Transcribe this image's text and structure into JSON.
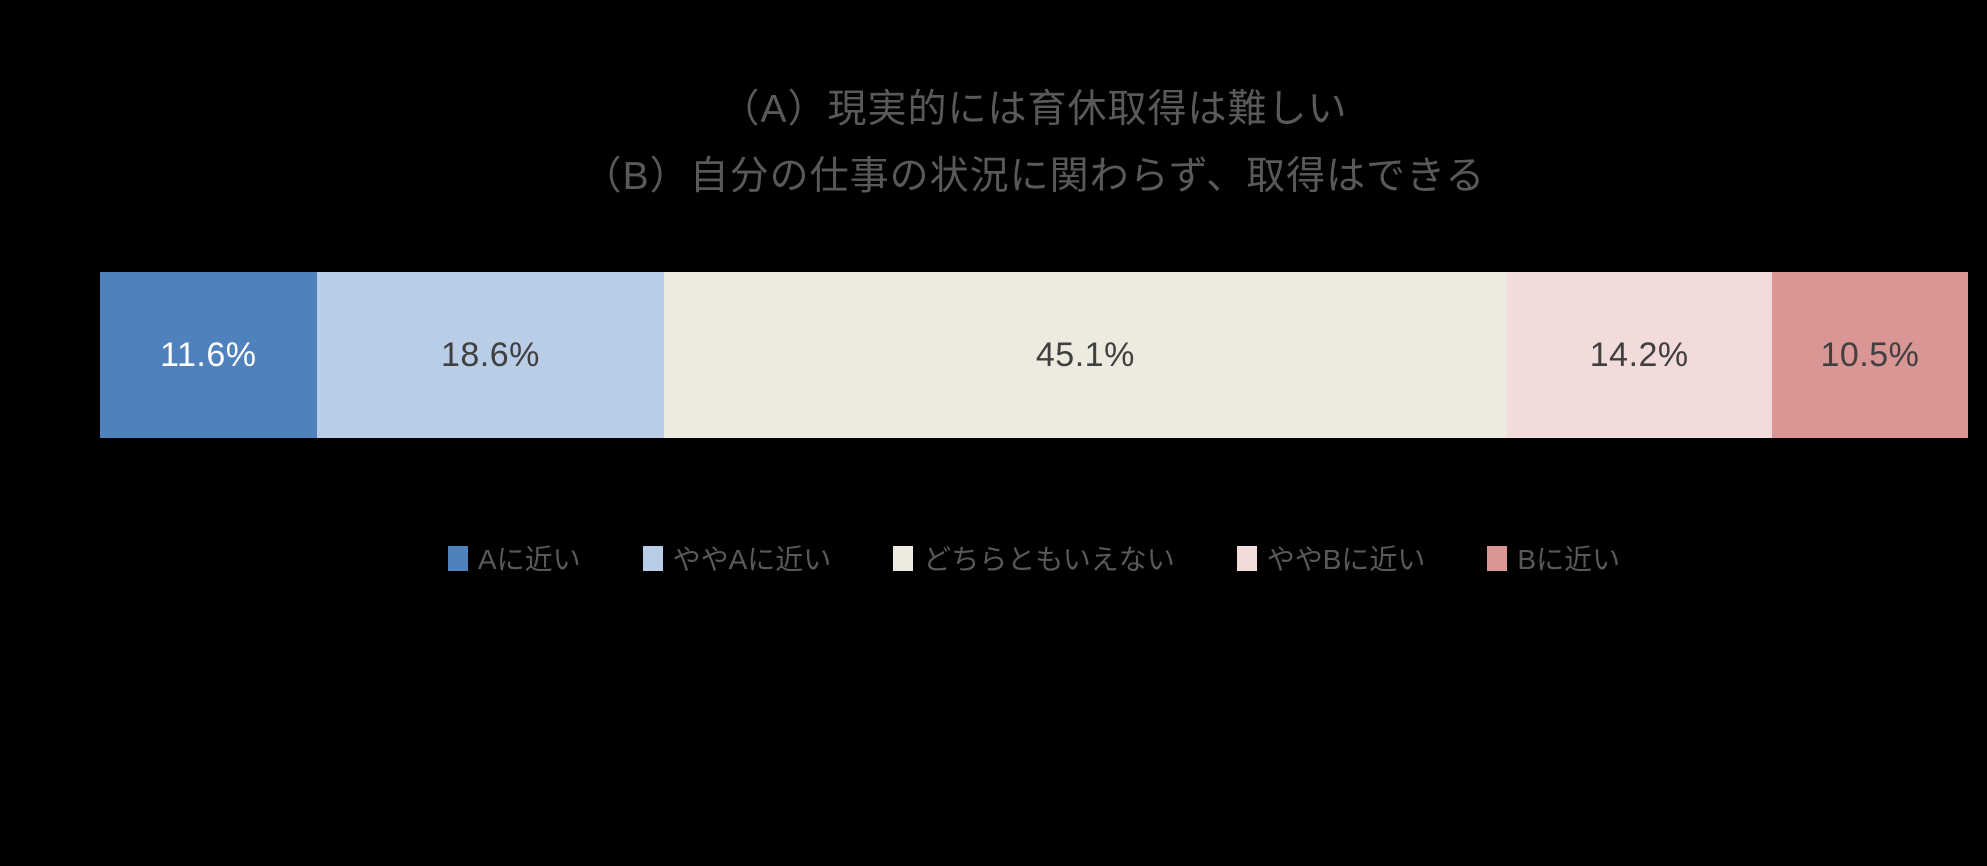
{
  "chart_data": {
    "type": "bar",
    "variant": "horizontal-stacked-100-percent",
    "title_lines": [
      "（A）現実的には育休取得は難しい",
      "（B）自分の仕事の状況に関わらず、取得はできる"
    ],
    "title_color": "#595959",
    "background": "#000000",
    "axes_visible": false,
    "unit": "%",
    "categories": [
      "Aに近い",
      "ややAに近い",
      "どちらともいえない",
      "ややBに近い",
      "Bに近い"
    ],
    "values": [
      11.6,
      18.6,
      45.1,
      14.2,
      10.5
    ],
    "segments": [
      {
        "label": "Aに近い",
        "value": 11.6,
        "display": "11.6%",
        "color": "#4F81BD",
        "text_color": "#FFFFFF"
      },
      {
        "label": "ややAに近い",
        "value": 18.6,
        "display": "18.6%",
        "color": "#B9CDE7",
        "text_color": "#404040"
      },
      {
        "label": "どちらともいえない",
        "value": 45.1,
        "display": "45.1%",
        "color": "#EDEBE0",
        "text_color": "#404040"
      },
      {
        "label": "ややBに近い",
        "value": 14.2,
        "display": "14.2%",
        "color": "#F2DCDB",
        "text_color": "#404040"
      },
      {
        "label": "Bに近い",
        "value": 10.5,
        "display": "10.5%",
        "color": "#D99694",
        "text_color": "#404040"
      }
    ],
    "legend": {
      "position": "bottom",
      "text_color": "#595959",
      "labels": [
        "Aに近い",
        "ややAに近い",
        "どちらともいえない",
        "ややBに近い",
        "Bに近い"
      ]
    }
  }
}
